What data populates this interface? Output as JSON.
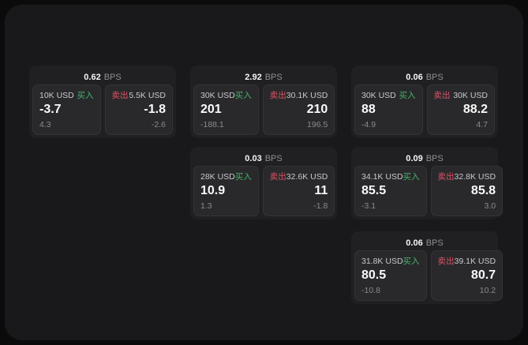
{
  "labels": {
    "bps": "BPS",
    "buy": "买入",
    "sell": "卖出"
  },
  "colors": {
    "buy": "#45b369",
    "sell": "#dd5265",
    "background_outer": "#0b0b0c",
    "background_panel": "#19191b",
    "card_background": "#202023",
    "subpanel_background": "#29292c"
  },
  "cards": [
    {
      "bps": "0.62",
      "buy": {
        "amount": "10K USD",
        "value": "-3.7",
        "sub": "4.3"
      },
      "sell": {
        "amount": "5.5K USD",
        "value": "-1.8",
        "sub": "-2.6"
      }
    },
    {
      "bps": "2.92",
      "buy": {
        "amount": "30K USD",
        "value": "201",
        "sub": "-188.1"
      },
      "sell": {
        "amount": "30.1K USD",
        "value": "210",
        "sub": "196.5"
      }
    },
    {
      "bps": "0.06",
      "buy": {
        "amount": "30K USD",
        "value": "88",
        "sub": "-4.9"
      },
      "sell": {
        "amount": "30K USD",
        "value": "88.2",
        "sub": "4.7"
      }
    },
    {
      "bps": "0.03",
      "buy": {
        "amount": "28K USD",
        "value": "10.9",
        "sub": "1.3"
      },
      "sell": {
        "amount": "32.6K USD",
        "value": "11",
        "sub": "-1.8"
      }
    },
    {
      "bps": "0.09",
      "buy": {
        "amount": "34.1K USD",
        "value": "85.5",
        "sub": "-3.1"
      },
      "sell": {
        "amount": "32.8K USD",
        "value": "85.8",
        "sub": "3.0"
      }
    },
    {
      "bps": "0.06",
      "buy": {
        "amount": "31.8K USD",
        "value": "80.5",
        "sub": "-10.8"
      },
      "sell": {
        "amount": "39.1K USD",
        "value": "80.7",
        "sub": "10.2"
      }
    }
  ]
}
